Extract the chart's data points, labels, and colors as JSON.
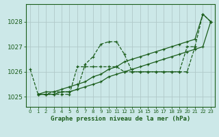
{
  "title": "Graphe pression niveau de la mer (hPa)",
  "background_color": "#cce8e8",
  "grid_color": "#b0c8c8",
  "line_color": "#1a5c1a",
  "xlim": [
    -0.5,
    23.5
  ],
  "ylim": [
    1024.6,
    1028.7
  ],
  "yticks": [
    1025,
    1026,
    1027,
    1028
  ],
  "xticks": [
    0,
    1,
    2,
    3,
    4,
    5,
    6,
    7,
    8,
    9,
    10,
    11,
    12,
    13,
    14,
    15,
    16,
    17,
    18,
    19,
    20,
    21,
    22,
    23
  ],
  "series": [
    {
      "x": [
        0,
        1,
        2,
        3,
        4,
        5,
        6,
        7,
        8,
        9,
        10,
        11,
        12,
        13,
        14,
        15,
        16,
        17,
        18,
        19,
        20,
        21,
        22,
        23
      ],
      "y": [
        1026.1,
        1025.1,
        1025.1,
        1025.2,
        1025.2,
        1025.2,
        1025.3,
        1026.3,
        1026.6,
        1027.1,
        1027.2,
        1027.2,
        1026.7,
        1026.0,
        1026.0,
        1026.0,
        1026.0,
        1026.0,
        1026.0,
        1026.0,
        1027.0,
        1027.0,
        1028.3,
        1028.0
      ],
      "style": "dashed",
      "marker": "+"
    },
    {
      "x": [
        1,
        2,
        3,
        4,
        5,
        6,
        7,
        8,
        9,
        10,
        11,
        12,
        13,
        14,
        15,
        16,
        17,
        18,
        19,
        20,
        21,
        22,
        23
      ],
      "y": [
        1025.1,
        1025.2,
        1025.2,
        1025.3,
        1025.4,
        1025.5,
        1025.6,
        1025.8,
        1025.9,
        1026.1,
        1026.2,
        1026.4,
        1026.5,
        1026.6,
        1026.7,
        1026.8,
        1026.9,
        1027.0,
        1027.1,
        1027.2,
        1027.3,
        1028.3,
        1028.0
      ],
      "style": "solid",
      "marker": "+"
    },
    {
      "x": [
        1,
        2,
        3,
        4,
        5,
        6,
        7,
        8,
        9,
        10,
        11,
        12,
        13,
        14,
        15,
        16,
        17,
        18,
        19,
        20,
        21,
        22,
        23
      ],
      "y": [
        1025.1,
        1025.1,
        1025.1,
        1025.2,
        1025.2,
        1025.3,
        1025.4,
        1025.5,
        1025.6,
        1025.8,
        1025.9,
        1026.0,
        1026.1,
        1026.2,
        1026.3,
        1026.4,
        1026.5,
        1026.6,
        1026.7,
        1026.8,
        1026.9,
        1027.0,
        1028.0
      ],
      "style": "solid",
      "marker": "+"
    },
    {
      "x": [
        1,
        2,
        3,
        4,
        5,
        6,
        7,
        8,
        9,
        10,
        11,
        12,
        13,
        14,
        15,
        16,
        17,
        18,
        19,
        20,
        21
      ],
      "y": [
        1025.1,
        1025.1,
        1025.1,
        1025.1,
        1025.1,
        1026.2,
        1026.2,
        1026.2,
        1026.2,
        1026.2,
        1026.2,
        1026.0,
        1026.0,
        1026.0,
        1026.0,
        1026.0,
        1026.0,
        1026.0,
        1026.0,
        1026.0,
        1027.0
      ],
      "style": "dashed",
      "marker": "+"
    }
  ]
}
